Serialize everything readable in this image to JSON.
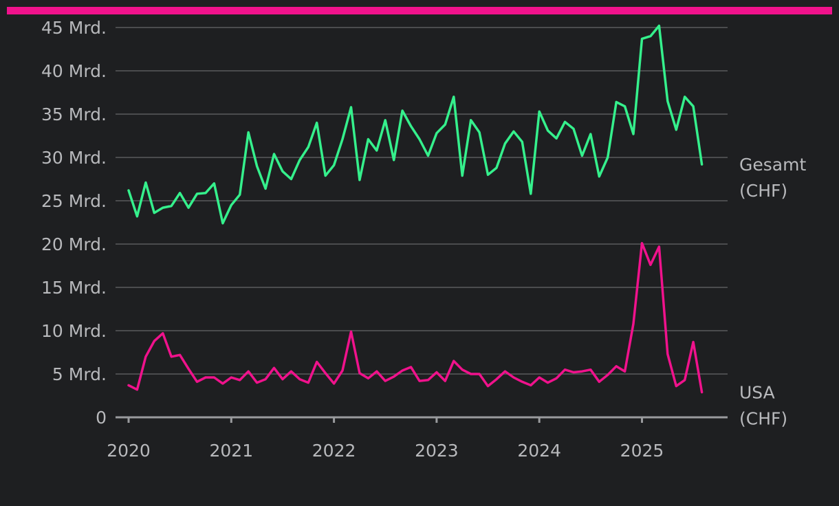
{
  "colors": {
    "background": "#1e1f21",
    "accent_bar": "#f0128c",
    "gesamt": "#35f08c",
    "usa": "#f0128c",
    "grid": "#5a5b5e",
    "text": "#b8b9bc"
  },
  "chart_data": {
    "type": "line",
    "title": "",
    "xlabel": "",
    "ylabel": "",
    "ylim": [
      0,
      45
    ],
    "xlim": [
      2020.0,
      2025.7
    ],
    "grid": true,
    "y_ticks": [
      {
        "value": 0,
        "label": "0"
      },
      {
        "value": 5,
        "label": "5 Mrd."
      },
      {
        "value": 10,
        "label": "10 Mrd."
      },
      {
        "value": 15,
        "label": "15 Mrd."
      },
      {
        "value": 20,
        "label": "20 Mrd."
      },
      {
        "value": 25,
        "label": "25 Mrd."
      },
      {
        "value": 30,
        "label": "30 Mrd."
      },
      {
        "value": 35,
        "label": "35 Mrd."
      },
      {
        "value": 40,
        "label": "40 Mrd."
      },
      {
        "value": 45,
        "label": "45 Mrd."
      }
    ],
    "x_ticks": [
      {
        "value": 2020,
        "label": "2020"
      },
      {
        "value": 2021,
        "label": "2021"
      },
      {
        "value": 2022,
        "label": "2022"
      },
      {
        "value": 2023,
        "label": "2023"
      },
      {
        "value": 2024,
        "label": "2024"
      },
      {
        "value": 2025,
        "label": "2025"
      }
    ],
    "x_start": "2020-01",
    "x_step": "1 month",
    "series": [
      {
        "name": "Gesamt (CHF)",
        "label_lines": [
          "Gesamt",
          "(CHF)"
        ],
        "color": "#35f08c",
        "values": [
          26.2,
          23.2,
          27.1,
          23.6,
          24.2,
          24.4,
          25.9,
          24.2,
          25.8,
          25.9,
          27.0,
          22.4,
          24.5,
          25.7,
          32.9,
          29.0,
          26.4,
          30.4,
          28.4,
          27.5,
          29.7,
          31.2,
          34.0,
          27.9,
          29.1,
          32.1,
          35.8,
          27.4,
          32.1,
          30.8,
          34.3,
          29.7,
          35.4,
          33.6,
          32.1,
          30.2,
          32.8,
          33.8,
          37.0,
          27.9,
          34.3,
          32.9,
          28.0,
          28.8,
          31.6,
          33.0,
          31.8,
          25.8,
          35.3,
          33.1,
          32.2,
          34.1,
          33.3,
          30.2,
          32.7,
          27.8,
          30.0,
          36.4,
          35.9,
          32.7,
          43.7,
          44.0,
          45.2,
          36.5,
          33.2,
          37.0,
          35.9,
          29.2
        ]
      },
      {
        "name": "USA (CHF)",
        "label_lines": [
          "USA",
          "(CHF)"
        ],
        "color": "#f0128c",
        "values": [
          3.7,
          3.2,
          7.0,
          8.8,
          9.7,
          7.0,
          7.2,
          5.6,
          4.1,
          4.6,
          4.6,
          3.9,
          4.6,
          4.3,
          5.3,
          4.0,
          4.4,
          5.7,
          4.4,
          5.3,
          4.4,
          4.0,
          6.4,
          5.1,
          3.9,
          5.4,
          9.9,
          5.1,
          4.5,
          5.3,
          4.2,
          4.7,
          5.4,
          5.8,
          4.2,
          4.3,
          5.2,
          4.2,
          6.5,
          5.5,
          5.0,
          5.0,
          3.6,
          4.4,
          5.3,
          4.6,
          4.1,
          3.7,
          4.6,
          4.0,
          4.5,
          5.5,
          5.2,
          5.3,
          5.5,
          4.1,
          4.9,
          5.9,
          5.3,
          10.8,
          20.1,
          17.6,
          19.7,
          7.3,
          3.6,
          4.3,
          8.7,
          2.9
        ]
      }
    ]
  }
}
